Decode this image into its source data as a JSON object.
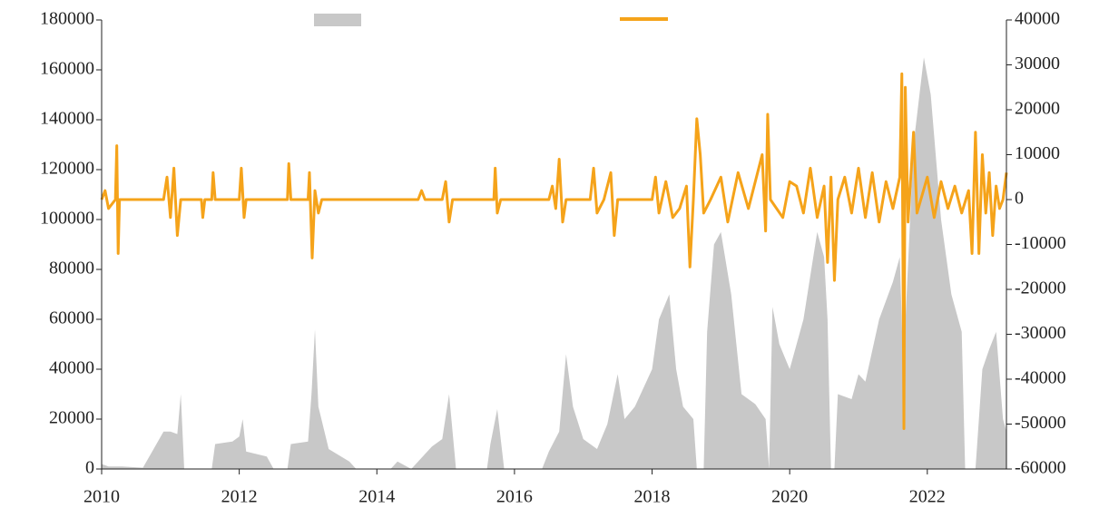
{
  "chart_data": {
    "type": "area-line",
    "xlim": [
      2010,
      2023.15
    ],
    "xticks": [
      2010,
      2012,
      2014,
      2016,
      2018,
      2020,
      2022
    ],
    "ylim": [
      0,
      180000
    ],
    "yticks": [
      0,
      20000,
      40000,
      60000,
      80000,
      100000,
      120000,
      140000,
      160000,
      180000
    ],
    "y2lim": [
      -60000,
      40000
    ],
    "y2ticks": [
      -60000,
      -50000,
      -40000,
      -30000,
      -20000,
      -10000,
      0,
      10000,
      20000,
      30000,
      40000
    ],
    "series": [
      {
        "type": "area",
        "color": "#c8c8c8",
        "x": [
          2010.0,
          2010.1,
          2010.3,
          2010.6,
          2010.9,
          2011.0,
          2011.1,
          2011.15,
          2011.2,
          2011.6,
          2011.65,
          2011.9,
          2012.0,
          2012.05,
          2012.1,
          2012.4,
          2012.5,
          2012.7,
          2012.75,
          2013.0,
          2013.05,
          2013.1,
          2013.15,
          2013.3,
          2013.6,
          2013.7,
          2014.2,
          2014.3,
          2014.5,
          2014.8,
          2014.95,
          2015.05,
          2015.15,
          2015.6,
          2015.65,
          2015.75,
          2015.85,
          2016.4,
          2016.5,
          2016.65,
          2016.75,
          2016.85,
          2017.0,
          2017.2,
          2017.35,
          2017.5,
          2017.6,
          2017.75,
          2018.0,
          2018.1,
          2018.25,
          2018.35,
          2018.45,
          2018.6,
          2018.65,
          2018.75,
          2018.8,
          2018.9,
          2019.0,
          2019.15,
          2019.3,
          2019.5,
          2019.65,
          2019.7,
          2019.75,
          2019.85,
          2020.0,
          2020.2,
          2020.4,
          2020.5,
          2020.55,
          2020.6,
          2020.65,
          2020.7,
          2020.9,
          2021.0,
          2021.1,
          2021.3,
          2021.5,
          2021.6,
          2021.65,
          2021.8,
          2021.95,
          2022.05,
          2022.2,
          2022.35,
          2022.5,
          2022.55,
          2022.7,
          2022.8,
          2022.9,
          2023.0,
          2023.1,
          2023.15
        ],
        "values": [
          2000,
          1000,
          1000,
          500,
          15000,
          15000,
          14000,
          30000,
          0,
          0,
          10000,
          11000,
          13000,
          20000,
          7000,
          5000,
          0,
          0,
          10000,
          11000,
          30000,
          56000,
          25000,
          8000,
          3000,
          0,
          0,
          3000,
          0,
          9000,
          12000,
          30000,
          0,
          0,
          10000,
          24000,
          0,
          0,
          7000,
          15000,
          46000,
          25000,
          12000,
          8000,
          18000,
          38000,
          20000,
          25000,
          40000,
          60000,
          70000,
          40000,
          25000,
          20000,
          0,
          0,
          55000,
          90000,
          95000,
          70000,
          30000,
          26000,
          20000,
          0,
          65000,
          50000,
          40000,
          60000,
          95000,
          85000,
          60000,
          0,
          0,
          30000,
          28000,
          38000,
          35000,
          60000,
          75000,
          85000,
          40000,
          130000,
          165000,
          150000,
          100000,
          70000,
          55000,
          0,
          0,
          40000,
          48000,
          55000,
          20000,
          15000
        ]
      },
      {
        "type": "line",
        "color": "#f5a31a",
        "axis": "y2",
        "x": [
          2010,
          2010.05,
          2010.1,
          2010.2,
          2010.22,
          2010.24,
          2010.26,
          2010.9,
          2010.95,
          2011.0,
          2011.05,
          2011.1,
          2011.15,
          2011.45,
          2011.47,
          2011.5,
          2011.6,
          2011.62,
          2011.65,
          2012.0,
          2012.03,
          2012.07,
          2012.1,
          2012.7,
          2012.72,
          2012.75,
          2013.0,
          2013.02,
          2013.06,
          2013.1,
          2013.15,
          2013.2,
          2013.8,
          2014.6,
          2014.65,
          2014.7,
          2014.95,
          2015.0,
          2015.05,
          2015.1,
          2015.7,
          2015.72,
          2015.75,
          2015.8,
          2016.5,
          2016.55,
          2016.6,
          2016.65,
          2016.7,
          2016.75,
          2017.1,
          2017.15,
          2017.2,
          2017.3,
          2017.4,
          2017.45,
          2017.5,
          2018.0,
          2018.05,
          2018.1,
          2018.2,
          2018.3,
          2018.4,
          2018.5,
          2018.55,
          2018.6,
          2018.65,
          2018.7,
          2018.75,
          2018.85,
          2019.0,
          2019.1,
          2019.25,
          2019.4,
          2019.6,
          2019.65,
          2019.68,
          2019.72,
          2019.9,
          2020.0,
          2020.1,
          2020.2,
          2020.3,
          2020.4,
          2020.5,
          2020.55,
          2020.6,
          2020.65,
          2020.7,
          2020.8,
          2020.9,
          2021.0,
          2021.1,
          2021.2,
          2021.3,
          2021.4,
          2021.5,
          2021.6,
          2021.63,
          2021.66,
          2021.68,
          2021.7,
          2021.72,
          2021.8,
          2021.85,
          2022.0,
          2022.1,
          2022.2,
          2022.3,
          2022.4,
          2022.5,
          2022.6,
          2022.65,
          2022.7,
          2022.75,
          2022.8,
          2022.85,
          2022.9,
          2022.95,
          2023.0,
          2023.05,
          2023.1,
          2023.15
        ],
        "values": [
          0,
          2000,
          -2000,
          0,
          12000,
          -12000,
          0,
          0,
          5000,
          -4000,
          7000,
          -8000,
          0,
          0,
          -4000,
          0,
          0,
          6000,
          0,
          0,
          7000,
          -4000,
          0,
          0,
          8000,
          0,
          0,
          6000,
          -13000,
          2000,
          -3000,
          0,
          0,
          0,
          2000,
          0,
          0,
          4000,
          -5000,
          0,
          0,
          7000,
          -3000,
          0,
          0,
          3000,
          -2000,
          9000,
          -5000,
          0,
          0,
          7000,
          -3000,
          0,
          6000,
          -8000,
          0,
          0,
          5000,
          -3000,
          4000,
          -4000,
          -2000,
          3000,
          -15000,
          0,
          18000,
          10000,
          -3000,
          0,
          5000,
          -5000,
          6000,
          -2000,
          10000,
          -7000,
          19000,
          0,
          -4000,
          4000,
          3000,
          -3000,
          7000,
          -4000,
          3000,
          -14000,
          5000,
          -18000,
          0,
          5000,
          -3000,
          7000,
          -4000,
          6000,
          -5000,
          4000,
          -2000,
          5000,
          28000,
          -51000,
          25000,
          10000,
          -5000,
          15000,
          -3000,
          5000,
          -4000,
          4000,
          -2000,
          3000,
          -3000,
          2000,
          -12000,
          15000,
          -12000,
          10000,
          -3000,
          6000,
          -8000,
          3000,
          -2000,
          0,
          6000
        ]
      }
    ]
  }
}
